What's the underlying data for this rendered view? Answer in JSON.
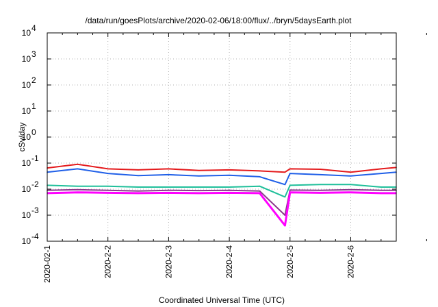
{
  "chart_data": {
    "type": "line",
    "title": "/data/run/goesPlots/archive/2020-02-06/18:00/flux/../bryn/5daysEarth.plot",
    "xlabel": "Coordinated Universal Time (UTC)",
    "ylabel": "cSv/day",
    "yscale": "log",
    "ylim": [
      0.0001,
      10000
    ],
    "xlim": [
      "2020-02-01",
      "2020-02-06 18:00"
    ],
    "y_ticks": [
      {
        "base": "10",
        "exp": "-4"
      },
      {
        "base": "10",
        "exp": "-3"
      },
      {
        "base": "10",
        "exp": "-2"
      },
      {
        "base": "10",
        "exp": "-1"
      },
      {
        "base": "10",
        "exp": "0"
      },
      {
        "base": "10",
        "exp": "1"
      },
      {
        "base": "10",
        "exp": "2"
      },
      {
        "base": "10",
        "exp": "3"
      },
      {
        "base": "10",
        "exp": "4"
      }
    ],
    "x_ticks": [
      "2020-02-1",
      "2020-2-2",
      "2020-2-3",
      "2020-2-4",
      "2020-2-5",
      "2020-2-6"
    ],
    "grid": true,
    "series": [
      {
        "color": "#e41a1c",
        "x": [
          "2020-02-01",
          "2020-02-01 12:00",
          "2020-02-02",
          "2020-02-02 12:00",
          "2020-02-03",
          "2020-02-03 12:00",
          "2020-02-04",
          "2020-02-04 12:00",
          "2020-02-04 22:00",
          "2020-02-05",
          "2020-02-05 12:00",
          "2020-02-06",
          "2020-02-06 12:00",
          "2020-02-06 18:00"
        ],
        "values": [
          0.065,
          0.09,
          0.06,
          0.055,
          0.06,
          0.052,
          0.055,
          0.05,
          0.045,
          0.06,
          0.058,
          0.045,
          0.06,
          0.068
        ]
      },
      {
        "color": "#1f5fe8",
        "x": [
          "2020-02-01",
          "2020-02-01 12:00",
          "2020-02-02",
          "2020-02-02 12:00",
          "2020-02-03",
          "2020-02-03 12:00",
          "2020-02-04",
          "2020-02-04 12:00",
          "2020-02-04 22:00",
          "2020-02-05",
          "2020-02-05 12:00",
          "2020-02-06",
          "2020-02-06 12:00",
          "2020-02-06 18:00"
        ],
        "values": [
          0.045,
          0.06,
          0.04,
          0.033,
          0.036,
          0.032,
          0.034,
          0.03,
          0.015,
          0.04,
          0.036,
          0.032,
          0.04,
          0.045
        ]
      },
      {
        "color": "#1fbf9a",
        "x": [
          "2020-02-01",
          "2020-02-01 12:00",
          "2020-02-02",
          "2020-02-02 12:00",
          "2020-02-03",
          "2020-02-03 12:00",
          "2020-02-04",
          "2020-02-04 12:00",
          "2020-02-04 22:00",
          "2020-02-05",
          "2020-02-05 12:00",
          "2020-02-06",
          "2020-02-06 12:00",
          "2020-02-06 18:00"
        ],
        "values": [
          0.014,
          0.013,
          0.013,
          0.012,
          0.012,
          0.012,
          0.012,
          0.013,
          0.005,
          0.014,
          0.015,
          0.015,
          0.012,
          0.012
        ]
      },
      {
        "color": "#8b3a8b",
        "x": [
          "2020-02-01",
          "2020-02-01 12:00",
          "2020-02-02",
          "2020-02-02 12:00",
          "2020-02-03",
          "2020-02-03 12:00",
          "2020-02-04",
          "2020-02-04 12:00",
          "2020-02-04 22:00",
          "2020-02-05",
          "2020-02-05 12:00",
          "2020-02-06",
          "2020-02-06 12:00",
          "2020-02-06 18:00"
        ],
        "values": [
          0.009,
          0.0095,
          0.009,
          0.0085,
          0.009,
          0.0088,
          0.009,
          0.0085,
          0.001,
          0.0092,
          0.009,
          0.0095,
          0.009,
          0.009
        ]
      },
      {
        "color": "#ff00ff",
        "x": [
          "2020-02-01",
          "2020-02-01 12:00",
          "2020-02-02",
          "2020-02-02 12:00",
          "2020-02-03",
          "2020-02-03 12:00",
          "2020-02-04",
          "2020-02-04 12:00",
          "2020-02-04 22:00",
          "2020-02-05",
          "2020-02-05 12:00",
          "2020-02-06",
          "2020-02-06 12:00",
          "2020-02-06 18:00"
        ],
        "values": [
          0.007,
          0.0075,
          0.0072,
          0.007,
          0.0072,
          0.007,
          0.0072,
          0.007,
          0.0004,
          0.0075,
          0.0072,
          0.0075,
          0.007,
          0.007
        ]
      }
    ]
  }
}
